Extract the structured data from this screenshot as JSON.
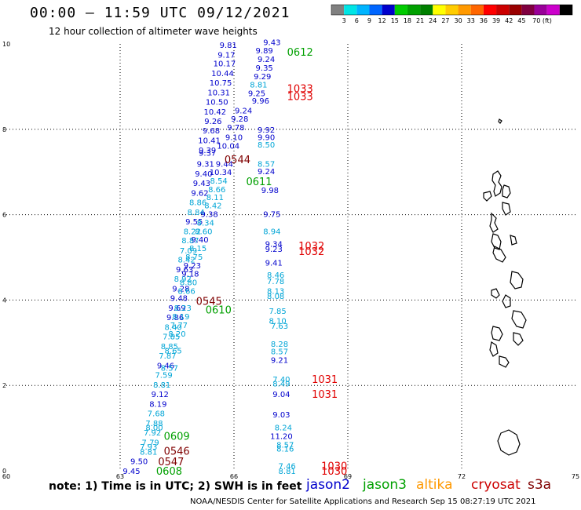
{
  "title": "00:00 – 11:59 UTC 09/12/2021",
  "subtitle": "12 hour collection of altimeter wave heights",
  "note": "note: 1) Time is in UTC; 2) SWH is in feet",
  "footer": "NOAA/NESDIS Center for Satellite Applications and Research   Sep 15 08:27:19 UTC 2021",
  "satellites": [
    {
      "name": "jason2",
      "color": "#0000cc"
    },
    {
      "name": "jason3",
      "color": "#00a000"
    },
    {
      "name": "altika",
      "color": "#ff9900"
    },
    {
      "name": "cryosat",
      "color": "#cc0000"
    },
    {
      "name": "s3a",
      "color": "#800000"
    }
  ],
  "color_scale": {
    "colors": [
      "#808080",
      "#00e5e5",
      "#00b4ff",
      "#0066ff",
      "#0000cc",
      "#00cc00",
      "#00a000",
      "#008000",
      "#ffff00",
      "#ffcc00",
      "#ff9900",
      "#ff6600",
      "#ff0000",
      "#cc0000",
      "#990000",
      "#800040",
      "#990099",
      "#cc00cc",
      "#000000"
    ],
    "labels": [
      "3",
      "6",
      "9",
      "12",
      "15",
      "18",
      "21",
      "24",
      "27",
      "30",
      "33",
      "36",
      "39",
      "42",
      "45",
      "70 (ft)"
    ]
  },
  "axes": {
    "lon_ticks": [
      "60",
      "63",
      "66",
      "69",
      "72",
      "75"
    ],
    "lat_ticks": [
      "0",
      "2",
      "4",
      "6",
      "8",
      "10"
    ]
  },
  "colors": {
    "dark_blue": "#0000cc",
    "cyan": "#00a5d6",
    "green": "#00a000",
    "red": "#e00000",
    "maroon": "#800000"
  },
  "time_labels": [
    {
      "text": "0612",
      "lon": 67.4,
      "lat": 9.82,
      "color": "green"
    },
    {
      "text": "1033",
      "lon": 67.4,
      "lat": 8.96,
      "color": "red"
    },
    {
      "text": "1033",
      "lon": 67.4,
      "lat": 8.78,
      "color": "red"
    },
    {
      "text": "0544",
      "lon": 65.75,
      "lat": 7.3,
      "color": "maroon"
    },
    {
      "text": "0611",
      "lon": 66.32,
      "lat": 6.78,
      "color": "green"
    },
    {
      "text": "1032",
      "lon": 67.7,
      "lat": 5.28,
      "color": "red"
    },
    {
      "text": "1032",
      "lon": 67.7,
      "lat": 5.15,
      "color": "red"
    },
    {
      "text": "0545",
      "lon": 65.0,
      "lat": 3.98,
      "color": "maroon"
    },
    {
      "text": "0610",
      "lon": 65.25,
      "lat": 3.78,
      "color": "green"
    },
    {
      "text": "1031",
      "lon": 68.05,
      "lat": 2.15,
      "color": "red"
    },
    {
      "text": "1031",
      "lon": 68.05,
      "lat": 1.8,
      "color": "red"
    },
    {
      "text": "0609",
      "lon": 64.15,
      "lat": 0.82,
      "color": "green"
    },
    {
      "text": "0546",
      "lon": 64.15,
      "lat": 0.47,
      "color": "maroon"
    },
    {
      "text": "0547",
      "lon": 64.0,
      "lat": 0.22,
      "color": "maroon"
    },
    {
      "text": "0608",
      "lon": 63.95,
      "lat": 0.0,
      "color": "green"
    },
    {
      "text": "1030",
      "lon": 68.3,
      "lat": 0.12,
      "color": "red"
    },
    {
      "text": "1030",
      "lon": 68.3,
      "lat": 0.0,
      "color": "red"
    }
  ],
  "wave_heights": [
    {
      "text": "9.81",
      "lon": 65.85,
      "lat": 9.98,
      "color": "dark_blue"
    },
    {
      "text": "9.17",
      "lon": 65.8,
      "lat": 9.75,
      "color": "dark_blue"
    },
    {
      "text": "10.17",
      "lon": 65.75,
      "lat": 9.55,
      "color": "dark_blue"
    },
    {
      "text": "10.44",
      "lon": 65.7,
      "lat": 9.32,
      "color": "dark_blue"
    },
    {
      "text": "10.75",
      "lon": 65.65,
      "lat": 9.1,
      "color": "dark_blue"
    },
    {
      "text": "10.31",
      "lon": 65.6,
      "lat": 8.87,
      "color": "dark_blue"
    },
    {
      "text": "10.50",
      "lon": 65.55,
      "lat": 8.65,
      "color": "dark_blue"
    },
    {
      "text": "10.42",
      "lon": 65.5,
      "lat": 8.42,
      "color": "dark_blue"
    },
    {
      "text": "9.26",
      "lon": 65.45,
      "lat": 8.2,
      "color": "dark_blue"
    },
    {
      "text": "9.68",
      "lon": 65.4,
      "lat": 7.98,
      "color": "dark_blue"
    },
    {
      "text": "10.41",
      "lon": 65.35,
      "lat": 7.75,
      "color": "dark_blue"
    },
    {
      "text": "9.39",
      "lon": 65.3,
      "lat": 7.52,
      "color": "dark_blue"
    },
    {
      "text": "9.37",
      "lon": 65.3,
      "lat": 7.45,
      "color": "dark_blue"
    },
    {
      "text": "9.31",
      "lon": 65.25,
      "lat": 7.2,
      "color": "dark_blue"
    },
    {
      "text": "9.40",
      "lon": 65.2,
      "lat": 6.97,
      "color": "dark_blue"
    },
    {
      "text": "9.43",
      "lon": 65.15,
      "lat": 6.75,
      "color": "dark_blue"
    },
    {
      "text": "9.62",
      "lon": 65.1,
      "lat": 6.52,
      "color": "dark_blue"
    },
    {
      "text": "8.86",
      "lon": 65.05,
      "lat": 6.3,
      "color": "cyan"
    },
    {
      "text": "8.84",
      "lon": 65.0,
      "lat": 6.07,
      "color": "cyan"
    },
    {
      "text": "9.55",
      "lon": 64.95,
      "lat": 5.85,
      "color": "dark_blue"
    },
    {
      "text": "8.22",
      "lon": 64.9,
      "lat": 5.62,
      "color": "cyan"
    },
    {
      "text": "8.87",
      "lon": 64.85,
      "lat": 5.4,
      "color": "cyan"
    },
    {
      "text": "7.09",
      "lon": 64.8,
      "lat": 5.17,
      "color": "cyan"
    },
    {
      "text": "8.42",
      "lon": 64.75,
      "lat": 4.95,
      "color": "cyan"
    },
    {
      "text": "9.63",
      "lon": 64.7,
      "lat": 4.72,
      "color": "dark_blue"
    },
    {
      "text": "8.92",
      "lon": 64.65,
      "lat": 4.5,
      "color": "cyan"
    },
    {
      "text": "9.28",
      "lon": 64.6,
      "lat": 4.27,
      "color": "dark_blue"
    },
    {
      "text": "9.48",
      "lon": 64.55,
      "lat": 4.05,
      "color": "dark_blue"
    },
    {
      "text": "9.69",
      "lon": 64.5,
      "lat": 3.82,
      "color": "dark_blue"
    },
    {
      "text": "9.86",
      "lon": 64.45,
      "lat": 3.6,
      "color": "dark_blue"
    },
    {
      "text": "8.40",
      "lon": 64.4,
      "lat": 3.37,
      "color": "cyan"
    },
    {
      "text": "7.85",
      "lon": 64.35,
      "lat": 3.15,
      "color": "cyan"
    },
    {
      "text": "8.85",
      "lon": 64.3,
      "lat": 2.92,
      "color": "cyan"
    },
    {
      "text": "7.87",
      "lon": 64.25,
      "lat": 2.7,
      "color": "cyan"
    },
    {
      "text": "9.46",
      "lon": 64.2,
      "lat": 2.47,
      "color": "dark_blue"
    },
    {
      "text": "7.59",
      "lon": 64.15,
      "lat": 2.25,
      "color": "cyan"
    },
    {
      "text": "8.81",
      "lon": 64.1,
      "lat": 2.02,
      "color": "cyan"
    },
    {
      "text": "9.12",
      "lon": 64.05,
      "lat": 1.8,
      "color": "dark_blue"
    },
    {
      "text": "8.19",
      "lon": 64.0,
      "lat": 1.57,
      "color": "dark_blue"
    },
    {
      "text": "7.68",
      "lon": 63.95,
      "lat": 1.35,
      "color": "cyan"
    },
    {
      "text": "7.88",
      "lon": 63.9,
      "lat": 1.12,
      "color": "cyan"
    },
    {
      "text": "7.92",
      "lon": 63.85,
      "lat": 0.9,
      "color": "cyan"
    },
    {
      "text": "7.79",
      "lon": 63.8,
      "lat": 0.67,
      "color": "cyan"
    },
    {
      "text": "8.81",
      "lon": 63.75,
      "lat": 0.45,
      "color": "cyan"
    },
    {
      "text": "9.50",
      "lon": 63.5,
      "lat": 0.23,
      "color": "dark_blue"
    },
    {
      "text": "9.45",
      "lon": 63.3,
      "lat": 0.0,
      "color": "dark_blue"
    },
    {
      "text": "8.00",
      "lon": 63.9,
      "lat": 1.02,
      "color": "cyan"
    },
    {
      "text": "7.93",
      "lon": 63.75,
      "lat": 0.57,
      "color": "cyan"
    },
    {
      "text": "9.43",
      "lon": 67.0,
      "lat": 10.05,
      "color": "dark_blue"
    },
    {
      "text": "9.89",
      "lon": 66.8,
      "lat": 9.85,
      "color": "dark_blue"
    },
    {
      "text": "9.24",
      "lon": 66.85,
      "lat": 9.65,
      "color": "dark_blue"
    },
    {
      "text": "9.35",
      "lon": 66.8,
      "lat": 9.45,
      "color": "dark_blue"
    },
    {
      "text": "9.29",
      "lon": 66.75,
      "lat": 9.25,
      "color": "dark_blue"
    },
    {
      "text": "8.81",
      "lon": 66.65,
      "lat": 9.05,
      "color": "cyan"
    },
    {
      "text": "9.25",
      "lon": 66.6,
      "lat": 8.85,
      "color": "dark_blue"
    },
    {
      "text": "9.96",
      "lon": 66.7,
      "lat": 8.68,
      "color": "dark_blue"
    },
    {
      "text": "9.24",
      "lon": 66.25,
      "lat": 8.45,
      "color": "dark_blue"
    },
    {
      "text": "9.28",
      "lon": 66.15,
      "lat": 8.25,
      "color": "dark_blue"
    },
    {
      "text": "9.78",
      "lon": 66.05,
      "lat": 8.05,
      "color": "dark_blue"
    },
    {
      "text": "9.92",
      "lon": 66.85,
      "lat": 8.0,
      "color": "dark_blue"
    },
    {
      "text": "9.10",
      "lon": 66.0,
      "lat": 7.82,
      "color": "dark_blue"
    },
    {
      "text": "9.90",
      "lon": 66.85,
      "lat": 7.82,
      "color": "dark_blue"
    },
    {
      "text": "8.50",
      "lon": 66.85,
      "lat": 7.65,
      "color": "cyan"
    },
    {
      "text": "10.04",
      "lon": 65.85,
      "lat": 7.62,
      "color": "dark_blue"
    },
    {
      "text": "9.44",
      "lon": 65.75,
      "lat": 7.2,
      "color": "dark_blue"
    },
    {
      "text": "8.57",
      "lon": 66.85,
      "lat": 7.2,
      "color": "cyan"
    },
    {
      "text": "9.24",
      "lon": 66.85,
      "lat": 7.02,
      "color": "dark_blue"
    },
    {
      "text": "10.34",
      "lon": 65.65,
      "lat": 7.0,
      "color": "dark_blue"
    },
    {
      "text": "8.54",
      "lon": 65.6,
      "lat": 6.8,
      "color": "cyan"
    },
    {
      "text": "8.66",
      "lon": 65.55,
      "lat": 6.6,
      "color": "cyan"
    },
    {
      "text": "9.98",
      "lon": 66.95,
      "lat": 6.58,
      "color": "dark_blue"
    },
    {
      "text": "8.11",
      "lon": 65.5,
      "lat": 6.42,
      "color": "cyan"
    },
    {
      "text": "8.42",
      "lon": 65.45,
      "lat": 6.22,
      "color": "cyan"
    },
    {
      "text": "9.38",
      "lon": 65.35,
      "lat": 6.02,
      "color": "dark_blue"
    },
    {
      "text": "9.75",
      "lon": 67.0,
      "lat": 6.02,
      "color": "dark_blue"
    },
    {
      "text": "8.34",
      "lon": 65.25,
      "lat": 5.82,
      "color": "cyan"
    },
    {
      "text": "8.60",
      "lon": 65.2,
      "lat": 5.62,
      "color": "cyan"
    },
    {
      "text": "8.94",
      "lon": 67.0,
      "lat": 5.62,
      "color": "cyan"
    },
    {
      "text": "9.40",
      "lon": 65.1,
      "lat": 5.42,
      "color": "dark_blue"
    },
    {
      "text": "9.34",
      "lon": 67.05,
      "lat": 5.32,
      "color": "dark_blue"
    },
    {
      "text": "9.23",
      "lon": 67.05,
      "lat": 5.2,
      "color": "dark_blue"
    },
    {
      "text": "8.15",
      "lon": 65.05,
      "lat": 5.22,
      "color": "cyan"
    },
    {
      "text": "8.75",
      "lon": 64.95,
      "lat": 5.02,
      "color": "cyan"
    },
    {
      "text": "9.41",
      "lon": 67.05,
      "lat": 4.88,
      "color": "dark_blue"
    },
    {
      "text": "9.23",
      "lon": 64.9,
      "lat": 4.82,
      "color": "dark_blue"
    },
    {
      "text": "9.18",
      "lon": 64.85,
      "lat": 4.62,
      "color": "dark_blue"
    },
    {
      "text": "8.46",
      "lon": 67.1,
      "lat": 4.6,
      "color": "cyan"
    },
    {
      "text": "7.78",
      "lon": 67.1,
      "lat": 4.45,
      "color": "cyan"
    },
    {
      "text": "8.80",
      "lon": 64.8,
      "lat": 4.42,
      "color": "cyan"
    },
    {
      "text": "8.13",
      "lon": 67.1,
      "lat": 4.22,
      "color": "cyan"
    },
    {
      "text": "8.66",
      "lon": 64.75,
      "lat": 4.22,
      "color": "cyan"
    },
    {
      "text": "8.08",
      "lon": 67.1,
      "lat": 4.1,
      "color": "cyan"
    },
    {
      "text": "8.23",
      "lon": 64.65,
      "lat": 3.82,
      "color": "cyan"
    },
    {
      "text": "8.19",
      "lon": 64.6,
      "lat": 3.62,
      "color": "cyan"
    },
    {
      "text": "7.85",
      "lon": 67.15,
      "lat": 3.75,
      "color": "cyan"
    },
    {
      "text": "8.10",
      "lon": 67.15,
      "lat": 3.52,
      "color": "cyan"
    },
    {
      "text": "7.63",
      "lon": 67.2,
      "lat": 3.4,
      "color": "cyan"
    },
    {
      "text": "7.77",
      "lon": 64.55,
      "lat": 3.42,
      "color": "cyan"
    },
    {
      "text": "8.20",
      "lon": 64.5,
      "lat": 3.22,
      "color": "cyan"
    },
    {
      "text": "8.28",
      "lon": 67.2,
      "lat": 2.98,
      "color": "cyan"
    },
    {
      "text": "8.57",
      "lon": 67.2,
      "lat": 2.8,
      "color": "cyan"
    },
    {
      "text": "8.65",
      "lon": 64.4,
      "lat": 2.82,
      "color": "cyan"
    },
    {
      "text": "9.21",
      "lon": 67.2,
      "lat": 2.6,
      "color": "dark_blue"
    },
    {
      "text": "8.57",
      "lon": 64.3,
      "lat": 2.42,
      "color": "cyan"
    },
    {
      "text": "7.40",
      "lon": 67.25,
      "lat": 2.15,
      "color": "cyan"
    },
    {
      "text": "8.49",
      "lon": 67.25,
      "lat": 2.05,
      "color": "cyan"
    },
    {
      "text": "9.04",
      "lon": 67.25,
      "lat": 1.8,
      "color": "dark_blue"
    },
    {
      "text": "9.03",
      "lon": 67.25,
      "lat": 1.32,
      "color": "dark_blue"
    },
    {
      "text": "8.24",
      "lon": 67.3,
      "lat": 1.02,
      "color": "cyan"
    },
    {
      "text": "11.20",
      "lon": 67.25,
      "lat": 0.82,
      "color": "dark_blue"
    },
    {
      "text": "8.57",
      "lon": 67.35,
      "lat": 0.62,
      "color": "cyan"
    },
    {
      "text": "8.16",
      "lon": 67.35,
      "lat": 0.52,
      "color": "cyan"
    },
    {
      "text": "7.46",
      "lon": 67.4,
      "lat": 0.12,
      "color": "cyan"
    },
    {
      "text": "8.81",
      "lon": 67.4,
      "lat": 0.0,
      "color": "cyan"
    }
  ]
}
